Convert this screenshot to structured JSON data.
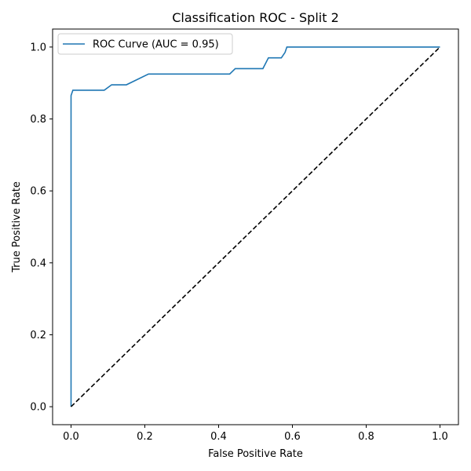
{
  "chart_data": {
    "type": "line",
    "title": "Classification ROC - Split 2",
    "xlabel": "False Positive Rate",
    "ylabel": "True Positive Rate",
    "xlim": [
      -0.05,
      1.05
    ],
    "ylim": [
      -0.05,
      1.05
    ],
    "xticks": [
      0.0,
      0.2,
      0.4,
      0.6,
      0.8,
      1.0
    ],
    "yticks": [
      0.0,
      0.2,
      0.4,
      0.6,
      0.8,
      1.0
    ],
    "xtick_labels": [
      "0.0",
      "0.2",
      "0.4",
      "0.6",
      "0.8",
      "1.0"
    ],
    "ytick_labels": [
      "0.0",
      "0.2",
      "0.4",
      "0.6",
      "0.8",
      "1.0"
    ],
    "grid": false,
    "legend_position": "top-left",
    "series": [
      {
        "name": "ROC Curve (AUC = 0.95)",
        "color": "#1f77b4",
        "style": "solid",
        "x": [
          0.0,
          0.0,
          0.0,
          0.005,
          0.005,
          0.09,
          0.11,
          0.115,
          0.15,
          0.21,
          0.43,
          0.445,
          0.52,
          0.535,
          0.57,
          0.58,
          0.585,
          1.0
        ],
        "y": [
          0.0,
          0.86,
          0.865,
          0.88,
          0.88,
          0.88,
          0.895,
          0.895,
          0.895,
          0.925,
          0.925,
          0.94,
          0.94,
          0.97,
          0.97,
          0.985,
          1.0,
          1.0
        ]
      },
      {
        "name": "",
        "color": "#000000",
        "style": "dashed",
        "x": [
          0.0,
          1.0
        ],
        "y": [
          0.0,
          1.0
        ]
      }
    ]
  }
}
